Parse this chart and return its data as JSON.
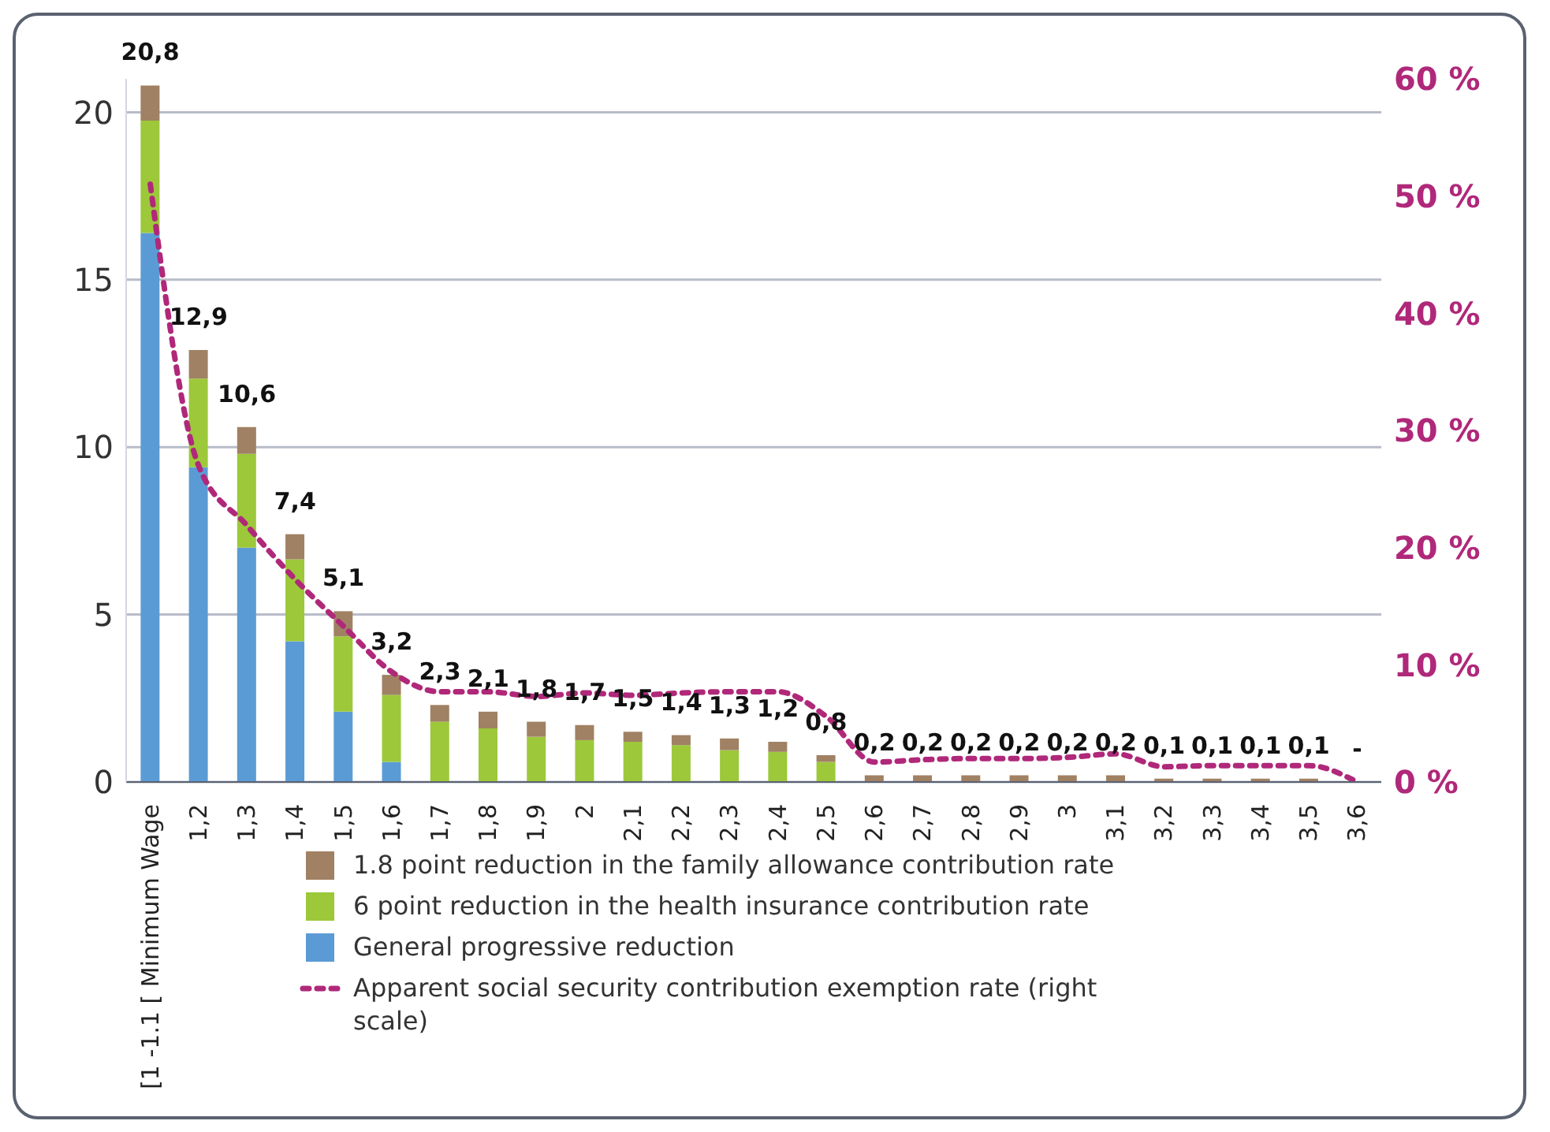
{
  "chart_data": {
    "type": "bar",
    "stacked": true,
    "categories": [
      "[1 -1.1 [ Minimum Wage",
      "1,2",
      "1,3",
      "1,4",
      "1,5",
      "1,6",
      "1,7",
      "1,8",
      "1,9",
      "2",
      "2,1",
      "2,2",
      "2,3",
      "2,4",
      "2,5",
      "2,6",
      "2,7",
      "2,8",
      "2,9",
      "3",
      "3,1",
      "3,2",
      "3,3",
      "3,4",
      "3,5",
      "3,6"
    ],
    "series": [
      {
        "name": "General progressive reduction",
        "color": "#5b9bd5",
        "values": [
          16.4,
          9.4,
          7.0,
          4.2,
          2.1,
          0.6,
          null,
          null,
          null,
          null,
          null,
          null,
          null,
          null,
          null,
          null,
          null,
          null,
          null,
          null,
          null,
          null,
          null,
          null,
          null,
          null
        ]
      },
      {
        "name": "6 point reduction in the health insurance contribution rate",
        "color": "#9cc83a",
        "values": [
          3.35,
          2.65,
          2.8,
          2.45,
          2.25,
          2.0,
          1.8,
          1.6,
          1.35,
          1.25,
          1.2,
          1.1,
          0.95,
          0.9,
          0.6,
          null,
          null,
          null,
          null,
          null,
          null,
          null,
          null,
          null,
          null,
          null
        ]
      },
      {
        "name": "1.8 point reduction in the family allowance contribution rate",
        "color": "#a08163",
        "values": [
          1.05,
          0.85,
          0.8,
          0.75,
          0.75,
          0.6,
          0.5,
          0.5,
          0.45,
          0.45,
          0.3,
          0.3,
          0.35,
          0.3,
          0.2,
          0.2,
          0.2,
          0.2,
          0.2,
          0.2,
          0.2,
          0.1,
          0.1,
          0.1,
          0.1,
          null
        ]
      },
      {
        "name": "Apparent social security contribution exemption rate (right scale)",
        "type": "line",
        "axis": "y2",
        "color": "#b0287a",
        "line_style": "dashed",
        "marker": "none",
        "values": [
          51,
          27,
          21.9,
          17.3,
          13.3,
          9.4,
          7.7,
          7.7,
          7.3,
          7.6,
          7.4,
          7.6,
          7.7,
          7.7,
          5.6,
          1.7,
          1.9,
          2.0,
          2.0,
          2.1,
          2.4,
          1.3,
          1.4,
          1.4,
          1.4,
          0
        ]
      }
    ],
    "totals": [
      "20,8",
      "12,9",
      "10,6",
      "7,4",
      "5,1",
      "3,2",
      "2,3",
      "2,1",
      "1,8",
      "1,7",
      "1,5",
      "1,4",
      "1,3",
      "1,2",
      "0,8",
      "0,2",
      "0,2",
      "0,2",
      "0,2",
      "0,2",
      "0,2",
      "0,1",
      "0,1",
      "0,1",
      "0,1",
      "-"
    ],
    "ylim": [
      0,
      21
    ],
    "yticks": [
      0,
      5,
      10,
      15,
      20
    ],
    "y2lim": [
      0,
      60
    ],
    "y2ticks": [
      {
        "value": 0,
        "label": "0 %"
      },
      {
        "value": 10,
        "label": "10 %"
      },
      {
        "value": 20,
        "label": "20 %"
      },
      {
        "value": 30,
        "label": "30 %"
      },
      {
        "value": 40,
        "label": "40 %"
      },
      {
        "value": 50,
        "label": "50 %"
      },
      {
        "value": 60,
        "label": "60 %"
      }
    ],
    "grid": "y",
    "legend": "bottom"
  }
}
